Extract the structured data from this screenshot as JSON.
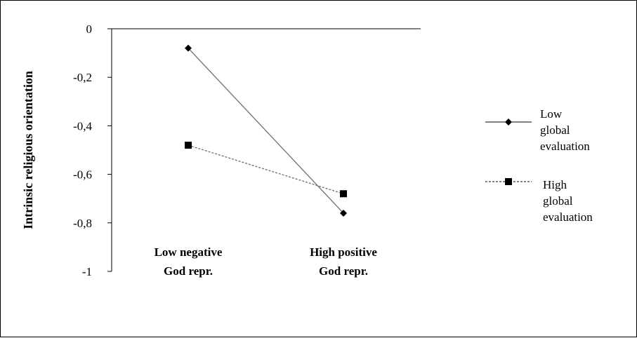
{
  "chart_data": {
    "type": "line",
    "title": "",
    "xlabel": "",
    "ylabel": "Intrinsic religious orientation",
    "ylim": [
      -1,
      0
    ],
    "yticks": [
      0,
      -0.2,
      -0.4,
      -0.6,
      -0.8,
      -1
    ],
    "ytick_labels": [
      "0",
      "-0,2",
      "-0,4",
      "-0,6",
      "-0,8",
      "-1"
    ],
    "categories": [
      [
        "Low negative",
        "God repr."
      ],
      [
        "High positive",
        "God repr."
      ]
    ],
    "series": [
      {
        "name": "Low global evaluation",
        "name_lines": [
          "Low",
          "global",
          "evaluation"
        ],
        "values": [
          -0.08,
          -0.76
        ],
        "marker": "diamond",
        "line_style": "solid",
        "color": "#6e6e6e"
      },
      {
        "name": "High global evaluation",
        "name_lines": [
          "High",
          "global",
          "evaluation"
        ],
        "values": [
          -0.48,
          -0.68
        ],
        "marker": "square",
        "line_style": "dashed",
        "color": "#6e6e6e"
      }
    ],
    "grid": false,
    "legend": "right"
  }
}
